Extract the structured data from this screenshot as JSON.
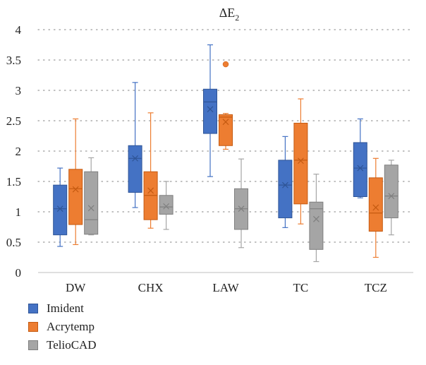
{
  "chart_data": {
    "type": "box",
    "title": "ΔE",
    "title_subscript": "2",
    "ylim": [
      0,
      4
    ],
    "yticks": [
      "0",
      "0.5",
      "1",
      "1.5",
      "2",
      "2.5",
      "3",
      "3.5",
      "4"
    ],
    "ytick_values": [
      0,
      0.5,
      1,
      1.5,
      2,
      2.5,
      3,
      3.5,
      4
    ],
    "grid": "horizontal dotted",
    "legend_placement": "bottom-left",
    "categories": [
      "DW",
      "CHX",
      "LAW",
      "TC",
      "TCZ"
    ],
    "series": [
      {
        "name": "Imident",
        "color": "#4472C4",
        "stroke": "#2F5597",
        "boxes": [
          {
            "min": 0.43,
            "q1": 0.62,
            "median": 1.05,
            "mean": 1.05,
            "q3": 1.44,
            "max": 1.72
          },
          {
            "min": 1.07,
            "q1": 1.32,
            "median": 1.88,
            "mean": 1.88,
            "q3": 2.09,
            "max": 3.13
          },
          {
            "min": 1.58,
            "q1": 2.29,
            "median": 2.81,
            "mean": 2.69,
            "q3": 3.02,
            "max": 3.75
          },
          {
            "min": 0.74,
            "q1": 0.9,
            "median": 1.44,
            "mean": 1.44,
            "q3": 1.85,
            "max": 2.24
          },
          {
            "min": 1.23,
            "q1": 1.25,
            "median": 1.72,
            "mean": 1.72,
            "q3": 2.14,
            "max": 2.53
          }
        ]
      },
      {
        "name": "Acrytemp",
        "color": "#ED7D31",
        "stroke": "#C55A11",
        "boxes": [
          {
            "min": 0.46,
            "q1": 0.79,
            "median": 1.38,
            "mean": 1.37,
            "q3": 1.7,
            "max": 2.53
          },
          {
            "min": 0.73,
            "q1": 0.87,
            "median": 1.27,
            "mean": 1.35,
            "q3": 1.66,
            "max": 2.63
          },
          {
            "min": 2.03,
            "q1": 2.09,
            "median": 2.56,
            "mean": 2.48,
            "q3": 2.6,
            "max": 2.62,
            "outliers": [
              3.43
            ]
          },
          {
            "min": 0.8,
            "q1": 1.13,
            "median": 1.85,
            "mean": 1.84,
            "q3": 2.46,
            "max": 2.86
          },
          {
            "min": 0.25,
            "q1": 0.68,
            "median": 0.98,
            "mean": 1.07,
            "q3": 1.56,
            "max": 1.88
          }
        ]
      },
      {
        "name": "TelioCAD",
        "color": "#A5A5A5",
        "stroke": "#7F7F7F",
        "boxes": [
          {
            "min": 0.62,
            "q1": 0.63,
            "median": 0.87,
            "mean": 1.06,
            "q3": 1.66,
            "max": 1.89
          },
          {
            "min": 0.71,
            "q1": 0.96,
            "median": 1.08,
            "mean": 1.09,
            "q3": 1.27,
            "max": 1.5
          },
          {
            "min": 0.41,
            "q1": 0.71,
            "median": 1.05,
            "mean": 1.05,
            "q3": 1.38,
            "max": 1.87
          },
          {
            "min": 0.18,
            "q1": 0.38,
            "median": 1.05,
            "mean": 0.88,
            "q3": 1.16,
            "max": 1.62
          },
          {
            "min": 0.62,
            "q1": 0.9,
            "median": 1.26,
            "mean": 1.26,
            "q3": 1.77,
            "max": 1.85
          }
        ]
      }
    ]
  }
}
